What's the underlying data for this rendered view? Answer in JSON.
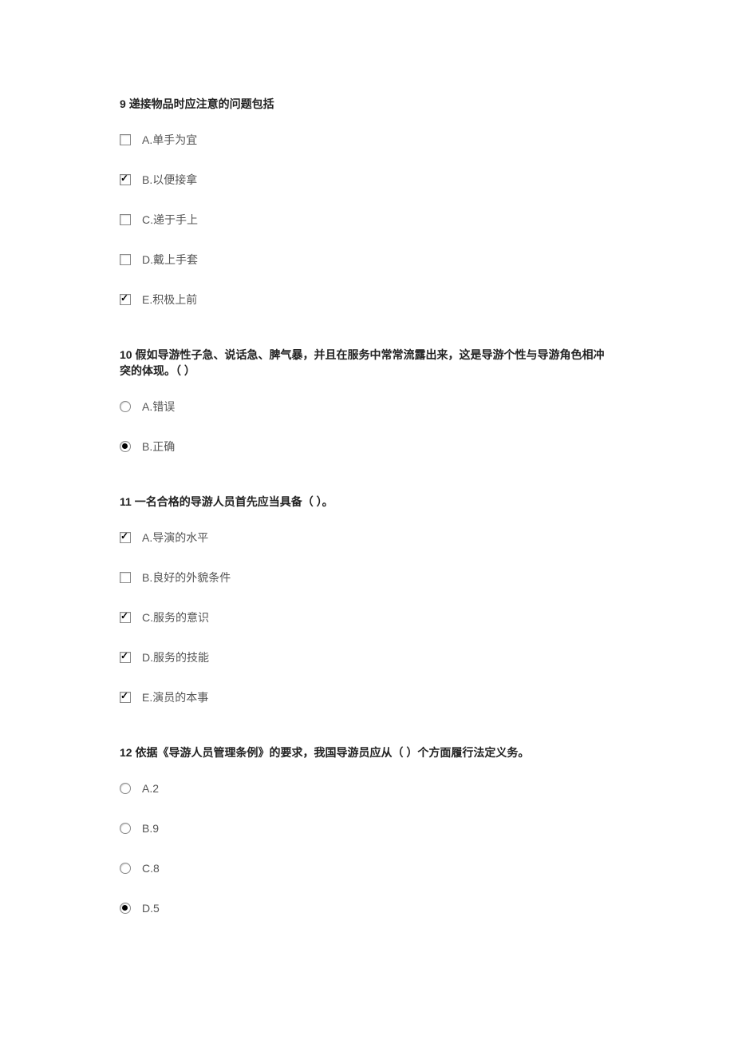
{
  "questions": [
    {
      "number": "9",
      "text": "递接物品时应注意的问题包括",
      "type": "checkbox",
      "options": [
        {
          "label": "A.单手为宜",
          "checked": false
        },
        {
          "label": "B.以便接拿",
          "checked": true
        },
        {
          "label": "C.递于手上",
          "checked": false
        },
        {
          "label": "D.戴上手套",
          "checked": false
        },
        {
          "label": "E.积极上前",
          "checked": true
        }
      ]
    },
    {
      "number": "10",
      "text": "假如导游性子急、说话急、脾气暴，并且在服务中常常流露出来，这是导游个性与导游角色相冲突的体现。（ ）",
      "type": "radio",
      "options": [
        {
          "label": "A.错误",
          "checked": false
        },
        {
          "label": "B.正确",
          "checked": true
        }
      ]
    },
    {
      "number": "11",
      "text": "一名合格的导游人员首先应当具备（ ）。",
      "type": "checkbox",
      "options": [
        {
          "label": "A.导演的水平",
          "checked": true
        },
        {
          "label": "B.良好的外貌条件",
          "checked": false
        },
        {
          "label": "C.服务的意识",
          "checked": true
        },
        {
          "label": "D.服务的技能",
          "checked": true
        },
        {
          "label": "E.演员的本事",
          "checked": true
        }
      ]
    },
    {
      "number": "12",
      "text": "依据《导游人员管理条例》的要求，我国导游员应从（ ）个方面履行法定义务。",
      "type": "radio",
      "options": [
        {
          "label": "A.2",
          "checked": false
        },
        {
          "label": "B.9",
          "checked": false
        },
        {
          "label": "C.8",
          "checked": false
        },
        {
          "label": "D.5",
          "checked": true
        }
      ]
    }
  ],
  "colors": {
    "background": "#ffffff",
    "title": "#222222",
    "option": "#555555"
  }
}
